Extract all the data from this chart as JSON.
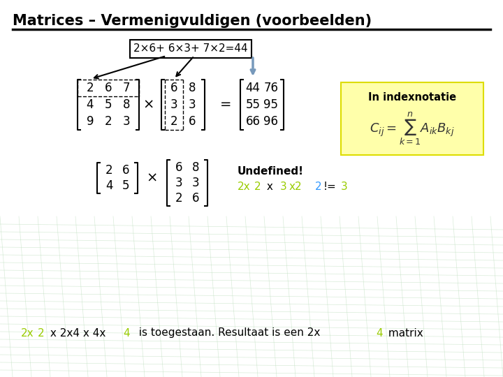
{
  "title": "Matrices – Vermenigvuldigen (voorbeelden)",
  "bg_color": "#ffffff",
  "highlight_color": "#99cc00",
  "blue_color": "#3399ff",
  "matrix_A": [
    [
      2,
      6,
      7
    ],
    [
      4,
      5,
      8
    ],
    [
      9,
      2,
      3
    ]
  ],
  "matrix_B": [
    [
      6,
      8
    ],
    [
      3,
      3
    ],
    [
      2,
      6
    ]
  ],
  "matrix_C": [
    [
      44,
      76
    ],
    [
      55,
      95
    ],
    [
      66,
      96
    ]
  ],
  "matrix_D": [
    [
      2,
      6
    ],
    [
      4,
      5
    ]
  ],
  "matrix_E": [
    [
      6,
      8
    ],
    [
      3,
      3
    ],
    [
      2,
      6
    ]
  ],
  "callout_text": "2×6+ 6×3+ 7×2=44",
  "grid_color": "#bbddbb"
}
